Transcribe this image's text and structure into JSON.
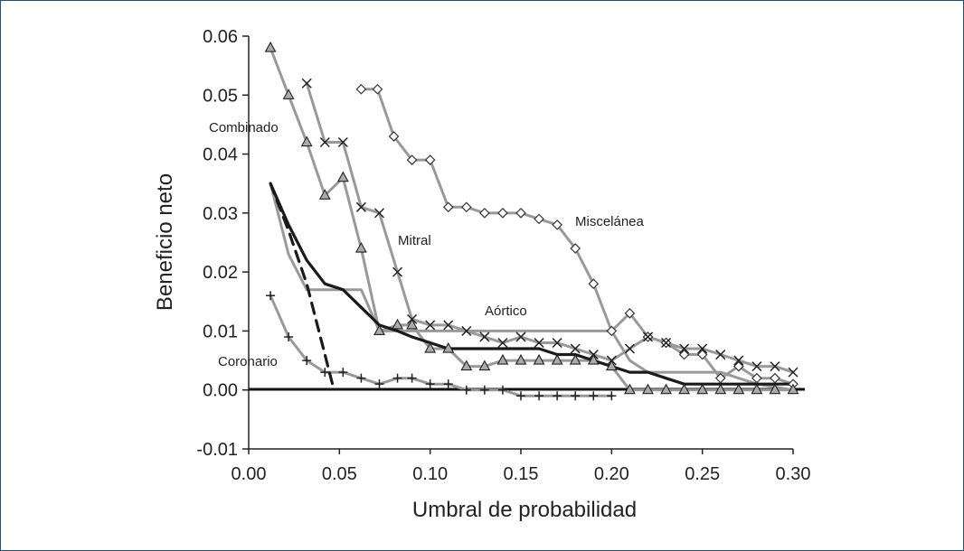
{
  "chart_data": {
    "type": "line",
    "xlabel": "Umbral de probabilidad",
    "ylabel": "Beneficio neto",
    "xlim": [
      0,
      0.3
    ],
    "ylim": [
      -0.01,
      0.06
    ],
    "xticks": [
      "0.00",
      "0.05",
      "0.10",
      "0.15",
      "0.20",
      "0.25",
      "0.30"
    ],
    "yticks": [
      "-0.01",
      "0.00",
      "0.01",
      "0.02",
      "0.03",
      "0.04",
      "0.05",
      "0.06"
    ],
    "grid": false,
    "legend": "none",
    "annotations": [
      {
        "text": "Combinado",
        "x": 0.01,
        "y": 0.044
      },
      {
        "text": "Mitral",
        "x": 0.083,
        "y": 0.0255
      },
      {
        "text": "Miscelánea",
        "x": 0.18,
        "y": 0.0285
      },
      {
        "text": "Aórtico",
        "x": 0.13,
        "y": 0.0125
      },
      {
        "text": "Coronario",
        "x": 0.0,
        "y": 0.0045
      }
    ],
    "series": [
      {
        "name": "Miscelánea",
        "marker": "diamond",
        "color": "#999999",
        "points": [
          {
            "x": 0.062,
            "y": 0.051
          },
          {
            "x": 0.071,
            "y": 0.051
          },
          {
            "x": 0.08,
            "y": 0.043
          },
          {
            "x": 0.09,
            "y": 0.039
          },
          {
            "x": 0.1,
            "y": 0.039
          },
          {
            "x": 0.11,
            "y": 0.031
          },
          {
            "x": 0.12,
            "y": 0.031
          },
          {
            "x": 0.13,
            "y": 0.03
          },
          {
            "x": 0.14,
            "y": 0.03
          },
          {
            "x": 0.15,
            "y": 0.03
          },
          {
            "x": 0.16,
            "y": 0.029
          },
          {
            "x": 0.17,
            "y": 0.028
          },
          {
            "x": 0.18,
            "y": 0.024
          },
          {
            "x": 0.19,
            "y": 0.018
          },
          {
            "x": 0.2,
            "y": 0.01
          },
          {
            "x": 0.21,
            "y": 0.013
          },
          {
            "x": 0.22,
            "y": 0.009
          },
          {
            "x": 0.23,
            "y": 0.008
          },
          {
            "x": 0.24,
            "y": 0.006
          },
          {
            "x": 0.25,
            "y": 0.006
          },
          {
            "x": 0.26,
            "y": 0.002
          },
          {
            "x": 0.27,
            "y": 0.004
          },
          {
            "x": 0.28,
            "y": 0.002
          },
          {
            "x": 0.29,
            "y": 0.002
          },
          {
            "x": 0.3,
            "y": 0.001
          }
        ]
      },
      {
        "name": "Combinado",
        "marker": "cross",
        "color": "#999999",
        "points": [
          {
            "x": 0.032,
            "y": 0.052
          },
          {
            "x": 0.042,
            "y": 0.042
          },
          {
            "x": 0.052,
            "y": 0.042
          },
          {
            "x": 0.062,
            "y": 0.031
          },
          {
            "x": 0.072,
            "y": 0.03
          },
          {
            "x": 0.082,
            "y": 0.02
          },
          {
            "x": 0.09,
            "y": 0.012
          },
          {
            "x": 0.1,
            "y": 0.011
          },
          {
            "x": 0.11,
            "y": 0.011
          },
          {
            "x": 0.12,
            "y": 0.01
          },
          {
            "x": 0.13,
            "y": 0.009
          },
          {
            "x": 0.14,
            "y": 0.008
          },
          {
            "x": 0.15,
            "y": 0.009
          },
          {
            "x": 0.16,
            "y": 0.008
          },
          {
            "x": 0.17,
            "y": 0.008
          },
          {
            "x": 0.18,
            "y": 0.007
          },
          {
            "x": 0.19,
            "y": 0.006
          },
          {
            "x": 0.2,
            "y": 0.005
          },
          {
            "x": 0.21,
            "y": 0.007
          },
          {
            "x": 0.22,
            "y": 0.009
          },
          {
            "x": 0.23,
            "y": 0.008
          },
          {
            "x": 0.24,
            "y": 0.007
          },
          {
            "x": 0.25,
            "y": 0.007
          },
          {
            "x": 0.26,
            "y": 0.006
          },
          {
            "x": 0.27,
            "y": 0.005
          },
          {
            "x": 0.28,
            "y": 0.004
          },
          {
            "x": 0.29,
            "y": 0.004
          },
          {
            "x": 0.3,
            "y": 0.003
          }
        ]
      },
      {
        "name": "Mitral",
        "marker": "triangle",
        "color": "#999999",
        "points": [
          {
            "x": 0.012,
            "y": 0.058
          },
          {
            "x": 0.022,
            "y": 0.05
          },
          {
            "x": 0.032,
            "y": 0.042
          },
          {
            "x": 0.042,
            "y": 0.033
          },
          {
            "x": 0.052,
            "y": 0.036
          },
          {
            "x": 0.062,
            "y": 0.024
          },
          {
            "x": 0.072,
            "y": 0.01
          },
          {
            "x": 0.082,
            "y": 0.011
          },
          {
            "x": 0.09,
            "y": 0.011
          },
          {
            "x": 0.1,
            "y": 0.007
          },
          {
            "x": 0.11,
            "y": 0.007
          },
          {
            "x": 0.12,
            "y": 0.004
          },
          {
            "x": 0.13,
            "y": 0.004
          },
          {
            "x": 0.14,
            "y": 0.005
          },
          {
            "x": 0.15,
            "y": 0.005
          },
          {
            "x": 0.16,
            "y": 0.005
          },
          {
            "x": 0.17,
            "y": 0.005
          },
          {
            "x": 0.18,
            "y": 0.005
          },
          {
            "x": 0.19,
            "y": 0.005
          },
          {
            "x": 0.2,
            "y": 0.004
          },
          {
            "x": 0.21,
            "y": 0.0
          },
          {
            "x": 0.22,
            "y": 0.0
          },
          {
            "x": 0.23,
            "y": 0.0
          },
          {
            "x": 0.24,
            "y": 0.0
          },
          {
            "x": 0.25,
            "y": 0.0
          },
          {
            "x": 0.26,
            "y": 0.0
          },
          {
            "x": 0.27,
            "y": 0.0
          },
          {
            "x": 0.28,
            "y": 0.0
          },
          {
            "x": 0.29,
            "y": 0.0
          },
          {
            "x": 0.3,
            "y": 0.0
          }
        ]
      },
      {
        "name": "Aórtico",
        "marker": "none",
        "color": "#999999",
        "points": [
          {
            "x": 0.012,
            "y": 0.035
          },
          {
            "x": 0.022,
            "y": 0.023
          },
          {
            "x": 0.032,
            "y": 0.017
          },
          {
            "x": 0.042,
            "y": 0.017
          },
          {
            "x": 0.052,
            "y": 0.017
          },
          {
            "x": 0.062,
            "y": 0.017
          },
          {
            "x": 0.072,
            "y": 0.01
          },
          {
            "x": 0.082,
            "y": 0.01
          },
          {
            "x": 0.1,
            "y": 0.01
          },
          {
            "x": 0.12,
            "y": 0.01
          },
          {
            "x": 0.14,
            "y": 0.01
          },
          {
            "x": 0.16,
            "y": 0.01
          },
          {
            "x": 0.18,
            "y": 0.01
          },
          {
            "x": 0.2,
            "y": 0.01
          },
          {
            "x": 0.21,
            "y": 0.005
          },
          {
            "x": 0.22,
            "y": 0.003
          },
          {
            "x": 0.24,
            "y": 0.003
          },
          {
            "x": 0.26,
            "y": 0.003
          },
          {
            "x": 0.28,
            "y": 0.001
          },
          {
            "x": 0.3,
            "y": 0.0
          }
        ]
      },
      {
        "name": "Coronario",
        "marker": "plus",
        "color": "#999999",
        "points": [
          {
            "x": 0.012,
            "y": 0.016
          },
          {
            "x": 0.022,
            "y": 0.009
          },
          {
            "x": 0.032,
            "y": 0.005
          },
          {
            "x": 0.042,
            "y": 0.003
          },
          {
            "x": 0.052,
            "y": 0.003
          },
          {
            "x": 0.062,
            "y": 0.002
          },
          {
            "x": 0.072,
            "y": 0.001
          },
          {
            "x": 0.082,
            "y": 0.002
          },
          {
            "x": 0.09,
            "y": 0.002
          },
          {
            "x": 0.1,
            "y": 0.001
          },
          {
            "x": 0.11,
            "y": 0.001
          },
          {
            "x": 0.12,
            "y": 0.0
          },
          {
            "x": 0.13,
            "y": 0.0
          },
          {
            "x": 0.14,
            "y": 0.0
          },
          {
            "x": 0.15,
            "y": -0.001
          },
          {
            "x": 0.16,
            "y": -0.001
          },
          {
            "x": 0.17,
            "y": -0.001
          },
          {
            "x": 0.18,
            "y": -0.001
          },
          {
            "x": 0.19,
            "y": -0.001
          },
          {
            "x": 0.2,
            "y": -0.001
          }
        ]
      },
      {
        "name": "",
        "marker": "none",
        "color": "#1a1a1a",
        "style": "solid",
        "points": [
          {
            "x": 0.012,
            "y": 0.035
          },
          {
            "x": 0.022,
            "y": 0.028
          },
          {
            "x": 0.032,
            "y": 0.022
          },
          {
            "x": 0.042,
            "y": 0.018
          },
          {
            "x": 0.052,
            "y": 0.017
          },
          {
            "x": 0.062,
            "y": 0.014
          },
          {
            "x": 0.072,
            "y": 0.011
          },
          {
            "x": 0.082,
            "y": 0.01
          },
          {
            "x": 0.09,
            "y": 0.009
          },
          {
            "x": 0.1,
            "y": 0.008
          },
          {
            "x": 0.11,
            "y": 0.007
          },
          {
            "x": 0.12,
            "y": 0.007
          },
          {
            "x": 0.13,
            "y": 0.007
          },
          {
            "x": 0.14,
            "y": 0.007
          },
          {
            "x": 0.15,
            "y": 0.007
          },
          {
            "x": 0.16,
            "y": 0.007
          },
          {
            "x": 0.17,
            "y": 0.006
          },
          {
            "x": 0.18,
            "y": 0.006
          },
          {
            "x": 0.19,
            "y": 0.005
          },
          {
            "x": 0.2,
            "y": 0.004
          },
          {
            "x": 0.21,
            "y": 0.003
          },
          {
            "x": 0.22,
            "y": 0.003
          },
          {
            "x": 0.23,
            "y": 0.002
          },
          {
            "x": 0.24,
            "y": 0.001
          },
          {
            "x": 0.26,
            "y": 0.001
          },
          {
            "x": 0.28,
            "y": 0.001
          },
          {
            "x": 0.3,
            "y": 0.001
          }
        ]
      },
      {
        "name": "",
        "marker": "none",
        "color": "#1a1a1a",
        "style": "dashed",
        "points": [
          {
            "x": 0.012,
            "y": 0.035
          },
          {
            "x": 0.022,
            "y": 0.027
          },
          {
            "x": 0.032,
            "y": 0.018
          },
          {
            "x": 0.042,
            "y": 0.006
          },
          {
            "x": 0.047,
            "y": 0.0
          }
        ]
      }
    ]
  }
}
